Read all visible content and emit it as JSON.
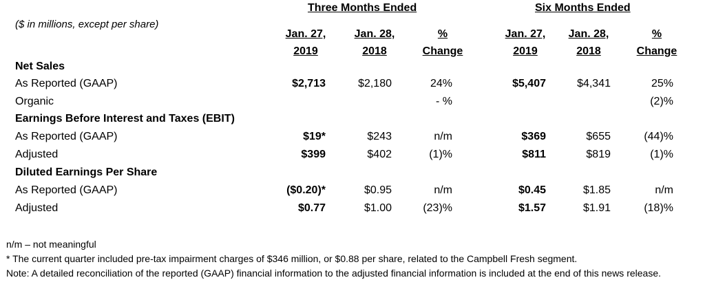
{
  "group_headers": {
    "three_months": "Three Months Ended",
    "six_months": "Six Months Ended"
  },
  "units_note": "($ in millions, except per share)",
  "column_headers": [
    {
      "line1": "Jan. 27,",
      "line2": "2019"
    },
    {
      "line1": "Jan. 28,",
      "line2": "2018"
    },
    {
      "line1": "%",
      "line2": "Change"
    },
    {
      "line1": "Jan. 27,",
      "line2": "2019"
    },
    {
      "line1": "Jan. 28,",
      "line2": "2018"
    },
    {
      "line1": "%",
      "line2": "Change"
    }
  ],
  "rows": [
    {
      "type": "section",
      "label": "Net Sales",
      "values": [
        "",
        "",
        "",
        "",
        "",
        ""
      ]
    },
    {
      "type": "item",
      "label": "As Reported (GAAP)",
      "values": [
        "$2,713",
        "$2,180",
        "24%",
        "$5,407",
        "$4,341",
        "25%"
      ]
    },
    {
      "type": "item",
      "label": "Organic",
      "values": [
        "",
        "",
        "- %",
        "",
        "",
        "(2)%"
      ]
    },
    {
      "type": "section",
      "label": "Earnings Before Interest and Taxes (EBIT)",
      "values": [
        "",
        "",
        "",
        "",
        "",
        ""
      ]
    },
    {
      "type": "item",
      "label": "As Reported (GAAP)",
      "values": [
        "$19*",
        "$243",
        "n/m",
        "$369",
        "$655",
        "(44)%"
      ]
    },
    {
      "type": "item",
      "label": "Adjusted",
      "values": [
        "$399",
        "$402",
        "(1)%",
        "$811",
        "$819",
        "(1)%"
      ]
    },
    {
      "type": "section",
      "label": "Diluted Earnings Per Share",
      "values": [
        "",
        "",
        "",
        "",
        "",
        ""
      ]
    },
    {
      "type": "item",
      "label": "As Reported (GAAP)",
      "values": [
        "($0.20)*",
        "$0.95",
        "n/m",
        "$0.45",
        "$1.85",
        "n/m"
      ]
    },
    {
      "type": "item",
      "label": "Adjusted",
      "values": [
        "$0.77",
        "$1.00",
        "(23)%",
        "$1.57",
        "$1.91",
        "(18)%"
      ]
    }
  ],
  "footnotes": {
    "nm": "n/m – not meaningful",
    "asterisk": "* The current quarter included pre-tax impairment charges of $346 million, or $0.88 per share, related to the Campbell Fresh segment.",
    "note": "Note: A detailed reconciliation of the reported (GAAP) financial information to the adjusted financial information is included at the end of this news release."
  }
}
